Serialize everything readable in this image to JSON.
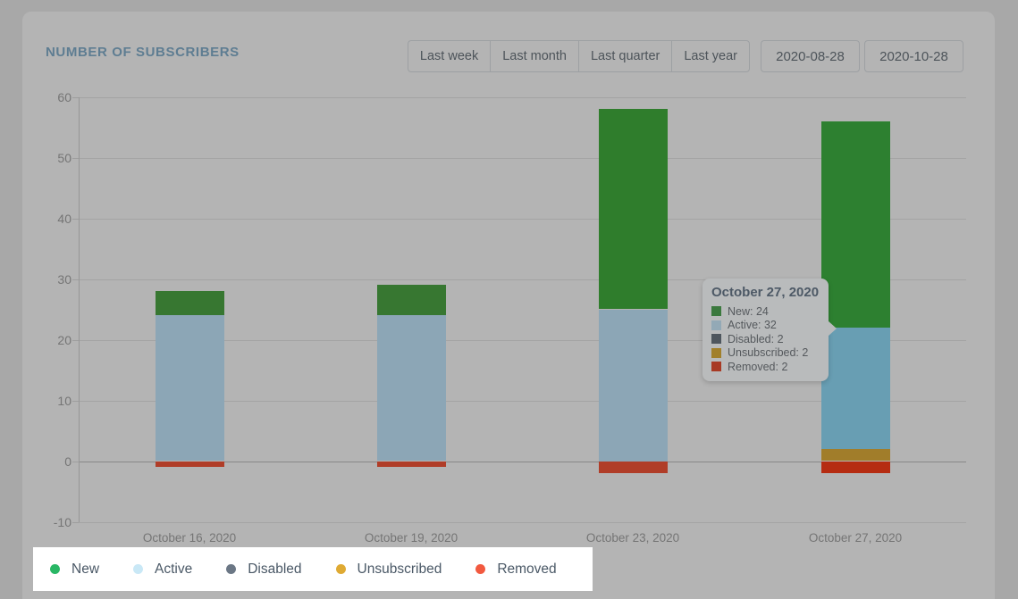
{
  "header": {
    "title": "NUMBER OF SUBSCRIBERS"
  },
  "toolbar": {
    "range_buttons": [
      {
        "label": "Last week"
      },
      {
        "label": "Last month"
      },
      {
        "label": "Last quarter"
      },
      {
        "label": "Last year"
      }
    ],
    "date_from": "2020-08-28",
    "date_to": "2020-10-28"
  },
  "chart_data": {
    "type": "bar",
    "stacked": true,
    "title": "NUMBER OF SUBSCRIBERS",
    "categories": [
      "October 16, 2020",
      "October 19, 2020",
      "October 23, 2020",
      "October 27, 2020"
    ],
    "series": [
      {
        "name": "New",
        "color": "#29b765",
        "values": [
          4,
          5,
          33,
          24
        ]
      },
      {
        "name": "Active",
        "color": "#c9e8f6",
        "values": [
          24,
          24,
          25,
          32
        ]
      },
      {
        "name": "Disabled",
        "color": "#6b7785",
        "values": [
          0,
          0,
          0,
          2
        ]
      },
      {
        "name": "Unsubscribed",
        "color": "#dfaa33",
        "values": [
          0,
          0,
          0,
          2
        ]
      },
      {
        "name": "Removed",
        "color": "#f2593f",
        "values": [
          -1,
          -1,
          -2,
          -2
        ]
      }
    ],
    "ylim": [
      -10,
      60
    ],
    "yticks": [
      60,
      50,
      40,
      30,
      20,
      10,
      0,
      -10
    ],
    "grid": true,
    "legend_position": "bottom",
    "bars_visual": [
      {
        "category": "October 16, 2020",
        "segments": [
          {
            "name": "active",
            "from": 0,
            "to": 24,
            "color": "#8ca6b6"
          },
          {
            "name": "new",
            "from": 24,
            "to": 28,
            "color": "#377731"
          },
          {
            "name": "removed",
            "from": -1,
            "to": 0,
            "color": "#b03d28"
          }
        ]
      },
      {
        "category": "October 19, 2020",
        "segments": [
          {
            "name": "active",
            "from": 0,
            "to": 24,
            "color": "#8ca6b6"
          },
          {
            "name": "new",
            "from": 24,
            "to": 29,
            "color": "#377731"
          },
          {
            "name": "removed",
            "from": -1,
            "to": 0,
            "color": "#b03d28"
          }
        ]
      },
      {
        "category": "October 23, 2020",
        "segments": [
          {
            "name": "active",
            "from": 0,
            "to": 25,
            "color": "#8ca6b6"
          },
          {
            "name": "new",
            "from": 25,
            "to": 58,
            "color": "#2f7d2c"
          },
          {
            "name": "removed",
            "from": -2,
            "to": 0,
            "color": "#b03d28"
          }
        ]
      },
      {
        "category": "October 27, 2020",
        "segments": [
          {
            "name": "active",
            "from": 2,
            "to": 22,
            "color": "#689eb3"
          },
          {
            "name": "new",
            "from": 22,
            "to": 56,
            "color": "#2d8030"
          },
          {
            "name": "unsubscribed",
            "from": 0,
            "to": 2,
            "color": "#a17d2a"
          },
          {
            "name": "removed",
            "from": -2,
            "to": 0,
            "color": "#b52c12"
          }
        ]
      }
    ]
  },
  "tooltip": {
    "title": "October 27, 2020",
    "rows": [
      {
        "label": "New: 24",
        "color": "#3b793e"
      },
      {
        "label": "Active: 32",
        "color": "#93a9b6"
      },
      {
        "label": "Disabled: 2",
        "color": "#4e565e"
      },
      {
        "label": "Unsubscribed: 2",
        "color": "#a1802b"
      },
      {
        "label": "Removed: 2",
        "color": "#a83a24"
      }
    ]
  },
  "legend": {
    "items": [
      {
        "label": "New",
        "color": "#29b765"
      },
      {
        "label": "Active",
        "color": "#c9e8f6"
      },
      {
        "label": "Disabled",
        "color": "#6b7785"
      },
      {
        "label": "Unsubscribed",
        "color": "#dfaa33"
      },
      {
        "label": "Removed",
        "color": "#f2593f"
      }
    ]
  }
}
